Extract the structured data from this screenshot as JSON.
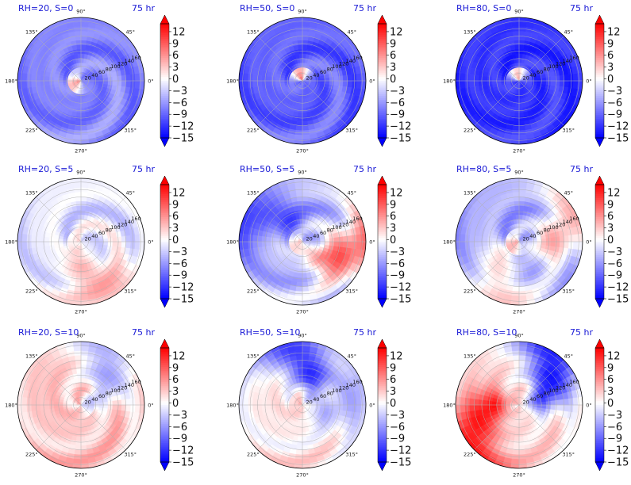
{
  "chart_data": {
    "type": "heatmap",
    "layout": "polar-small-multiples",
    "grid": true,
    "colormap": "bwr",
    "colors": {
      "low": "#0000ff",
      "mid": "#ffffff",
      "high": "#ff0000"
    },
    "color_range": [
      -15,
      14
    ],
    "colorbar_ticks": [
      "12",
      "9",
      "6",
      "3",
      "0",
      "−3",
      "−6",
      "−9",
      "−12",
      "−15"
    ],
    "colorbar_extend": "both",
    "angular_tick_labels": [
      "90°",
      "45°",
      "0°",
      "315°",
      "270°",
      "225°",
      "180°",
      "135°"
    ],
    "angular_ticks_deg": [
      90,
      45,
      0,
      315,
      270,
      225,
      180,
      135
    ],
    "radial_tick_labels": [
      "20",
      "40",
      "60",
      "80",
      "100",
      "120",
      "140",
      "160"
    ],
    "radial_ticks": [
      20,
      40,
      60,
      80,
      100,
      120,
      140,
      160
    ],
    "rlim": [
      0,
      170
    ],
    "radial_label_angle_deg": 22.5,
    "panels": [
      {
        "title": "RH=20, S=0",
        "time": "75 hr",
        "field": {
          "base": -7.5,
          "swirl": -1.5,
          "core": 10,
          "core_dir": 200,
          "arms": []
        }
      },
      {
        "title": "RH=50, S=0",
        "time": "75 hr",
        "field": {
          "base": -9.5,
          "swirl": -1.5,
          "core": 11,
          "core_dir": 110,
          "arms": []
        }
      },
      {
        "title": "RH=80, S=0",
        "time": "75 hr",
        "field": {
          "base": -12,
          "swirl": -0.8,
          "core": 9,
          "core_dir": 100,
          "arms": []
        }
      },
      {
        "title": "RH=20, S=5",
        "time": "75 hr",
        "field": {
          "base": -1.5,
          "swirl": -2,
          "core": 3,
          "core_dir": 180,
          "arms": [
            {
              "dir": 250,
              "v": 5
            }
          ]
        }
      },
      {
        "title": "RH=50, S=5",
        "time": "75 hr",
        "field": {
          "base": -4,
          "swirl": -2.5,
          "core": 6,
          "core_dir": 200,
          "arms": [
            {
              "dir": 100,
              "v": -9
            },
            {
              "dir": 300,
              "v": 10
            }
          ]
        }
      },
      {
        "title": "RH=80, S=5",
        "time": "75 hr",
        "field": {
          "base": -5,
          "swirl": -2,
          "core": 8,
          "core_dir": 200,
          "arms": [
            {
              "dir": 200,
              "v": 4
            },
            {
              "dir": 330,
              "v": 6
            }
          ]
        }
      },
      {
        "title": "RH=20, S=10",
        "time": "75 hr",
        "field": {
          "base": 3,
          "swirl": -1.5,
          "core": -4,
          "core_dir": 0,
          "arms": [
            {
              "dir": 10,
              "v": -6
            }
          ]
        }
      },
      {
        "title": "RH=50, S=10",
        "time": "75 hr",
        "field": {
          "base": 1,
          "swirl": -1.5,
          "core": 4,
          "core_dir": 180,
          "arms": [
            {
              "dir": 45,
              "v": -12
            },
            {
              "dir": 320,
              "v": -5
            }
          ]
        }
      },
      {
        "title": "RH=80, S=10",
        "time": "75 hr",
        "field": {
          "base": 2,
          "swirl": -1,
          "core": 3,
          "core_dir": 90,
          "arms": [
            {
              "dir": 160,
              "v": 12
            },
            {
              "dir": 0,
              "v": -14
            }
          ]
        }
      }
    ]
  }
}
